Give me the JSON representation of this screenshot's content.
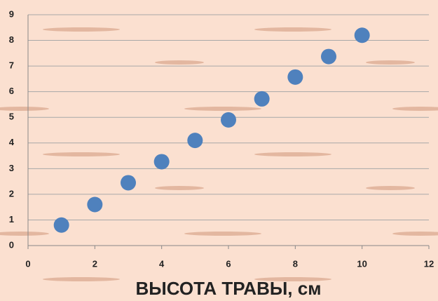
{
  "chart_data": {
    "type": "scatter",
    "x_label": "ВЫСОТА ТРАВЫ, см",
    "x": [
      1,
      2,
      3,
      4,
      5,
      6,
      7,
      8,
      9,
      10
    ],
    "values": [
      0.8,
      1.6,
      2.45,
      3.27,
      4.1,
      4.9,
      5.72,
      6.57,
      7.37,
      8.2
    ],
    "color": "#4f81bd",
    "xlim": [
      0,
      12
    ],
    "xticks": [
      0,
      2,
      4,
      6,
      8,
      10,
      12
    ],
    "ylim": [
      0,
      9
    ],
    "yticks": [
      0,
      1,
      2,
      3,
      4,
      5,
      6,
      7,
      8,
      9
    ],
    "grid": true
  }
}
